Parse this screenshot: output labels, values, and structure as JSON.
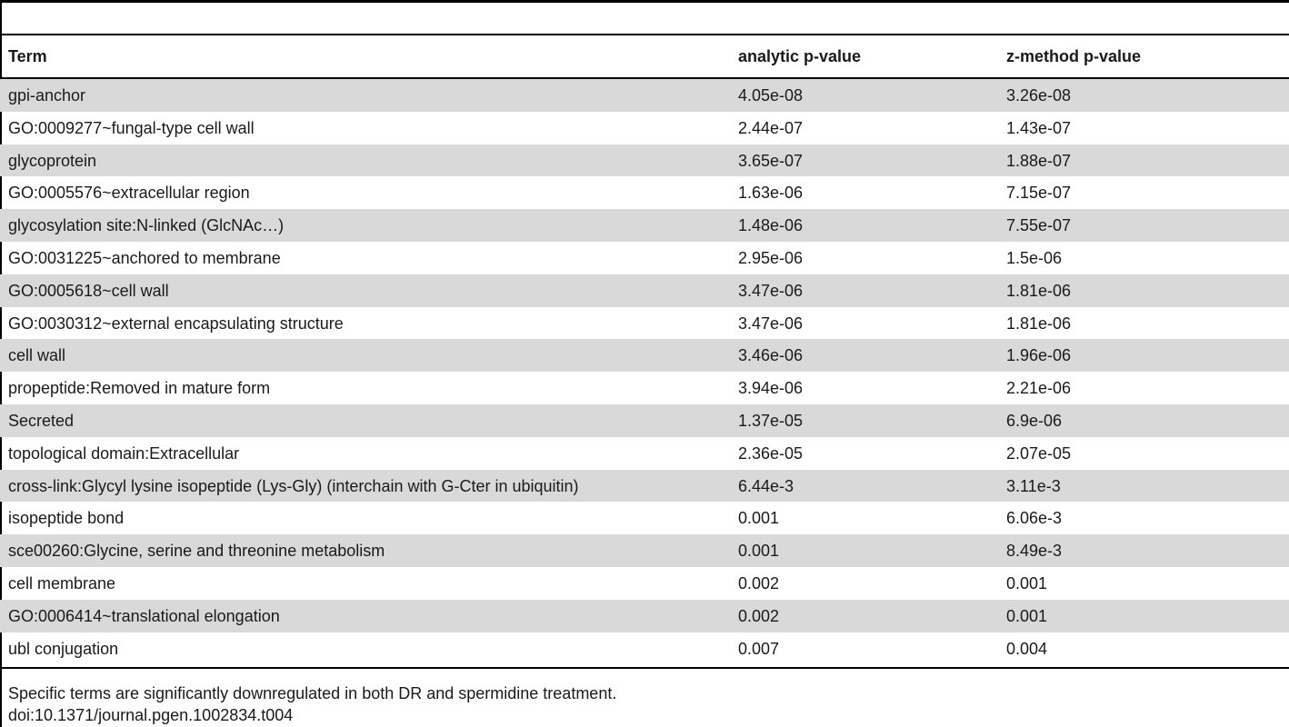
{
  "table": {
    "headers": {
      "term": "Term",
      "analytic": "analytic p-value",
      "zmethod": "z-method p-value"
    },
    "rows": [
      {
        "term": "gpi-anchor",
        "analytic": "4.05e-08",
        "zmethod": "3.26e-08"
      },
      {
        "term": "GO:0009277~fungal-type cell wall",
        "analytic": "2.44e-07",
        "zmethod": "1.43e-07"
      },
      {
        "term": "glycoprotein",
        "analytic": "3.65e-07",
        "zmethod": "1.88e-07"
      },
      {
        "term": "GO:0005576~extracellular region",
        "analytic": "1.63e-06",
        "zmethod": "7.15e-07"
      },
      {
        "term": "glycosylation site:N-linked (GlcNAc…)",
        "analytic": "1.48e-06",
        "zmethod": "7.55e-07"
      },
      {
        "term": "GO:0031225~anchored to membrane",
        "analytic": "2.95e-06",
        "zmethod": "1.5e-06"
      },
      {
        "term": "GO:0005618~cell wall",
        "analytic": "3.47e-06",
        "zmethod": "1.81e-06"
      },
      {
        "term": "GO:0030312~external encapsulating structure",
        "analytic": "3.47e-06",
        "zmethod": "1.81e-06"
      },
      {
        "term": "cell wall",
        "analytic": "3.46e-06",
        "zmethod": "1.96e-06"
      },
      {
        "term": "propeptide:Removed in mature form",
        "analytic": "3.94e-06",
        "zmethod": "2.21e-06"
      },
      {
        "term": "Secreted",
        "analytic": "1.37e-05",
        "zmethod": "6.9e-06"
      },
      {
        "term": "topological domain:Extracellular",
        "analytic": "2.36e-05",
        "zmethod": "2.07e-05"
      },
      {
        "term": "cross-link:Glycyl lysine isopeptide (Lys-Gly) (interchain with G-Cter in ubiquitin)",
        "analytic": "6.44e-3",
        "zmethod": "3.11e-3"
      },
      {
        "term": "isopeptide bond",
        "analytic": "0.001",
        "zmethod": "6.06e-3"
      },
      {
        "term": "sce00260:Glycine, serine and threonine metabolism",
        "analytic": "0.001",
        "zmethod": "8.49e-3"
      },
      {
        "term": "cell membrane",
        "analytic": "0.002",
        "zmethod": "0.001"
      },
      {
        "term": "GO:0006414~translational elongation",
        "analytic": "0.002",
        "zmethod": "0.001"
      },
      {
        "term": "ubl conjugation",
        "analytic": "0.007",
        "zmethod": "0.004"
      }
    ]
  },
  "footnote": "Specific terms are significantly downregulated in both DR and spermidine treatment.",
  "doi": "doi:10.1371/journal.pgen.1002834.t004",
  "colors": {
    "shaded_row": "#d9d9d9",
    "rule": "#000000"
  }
}
